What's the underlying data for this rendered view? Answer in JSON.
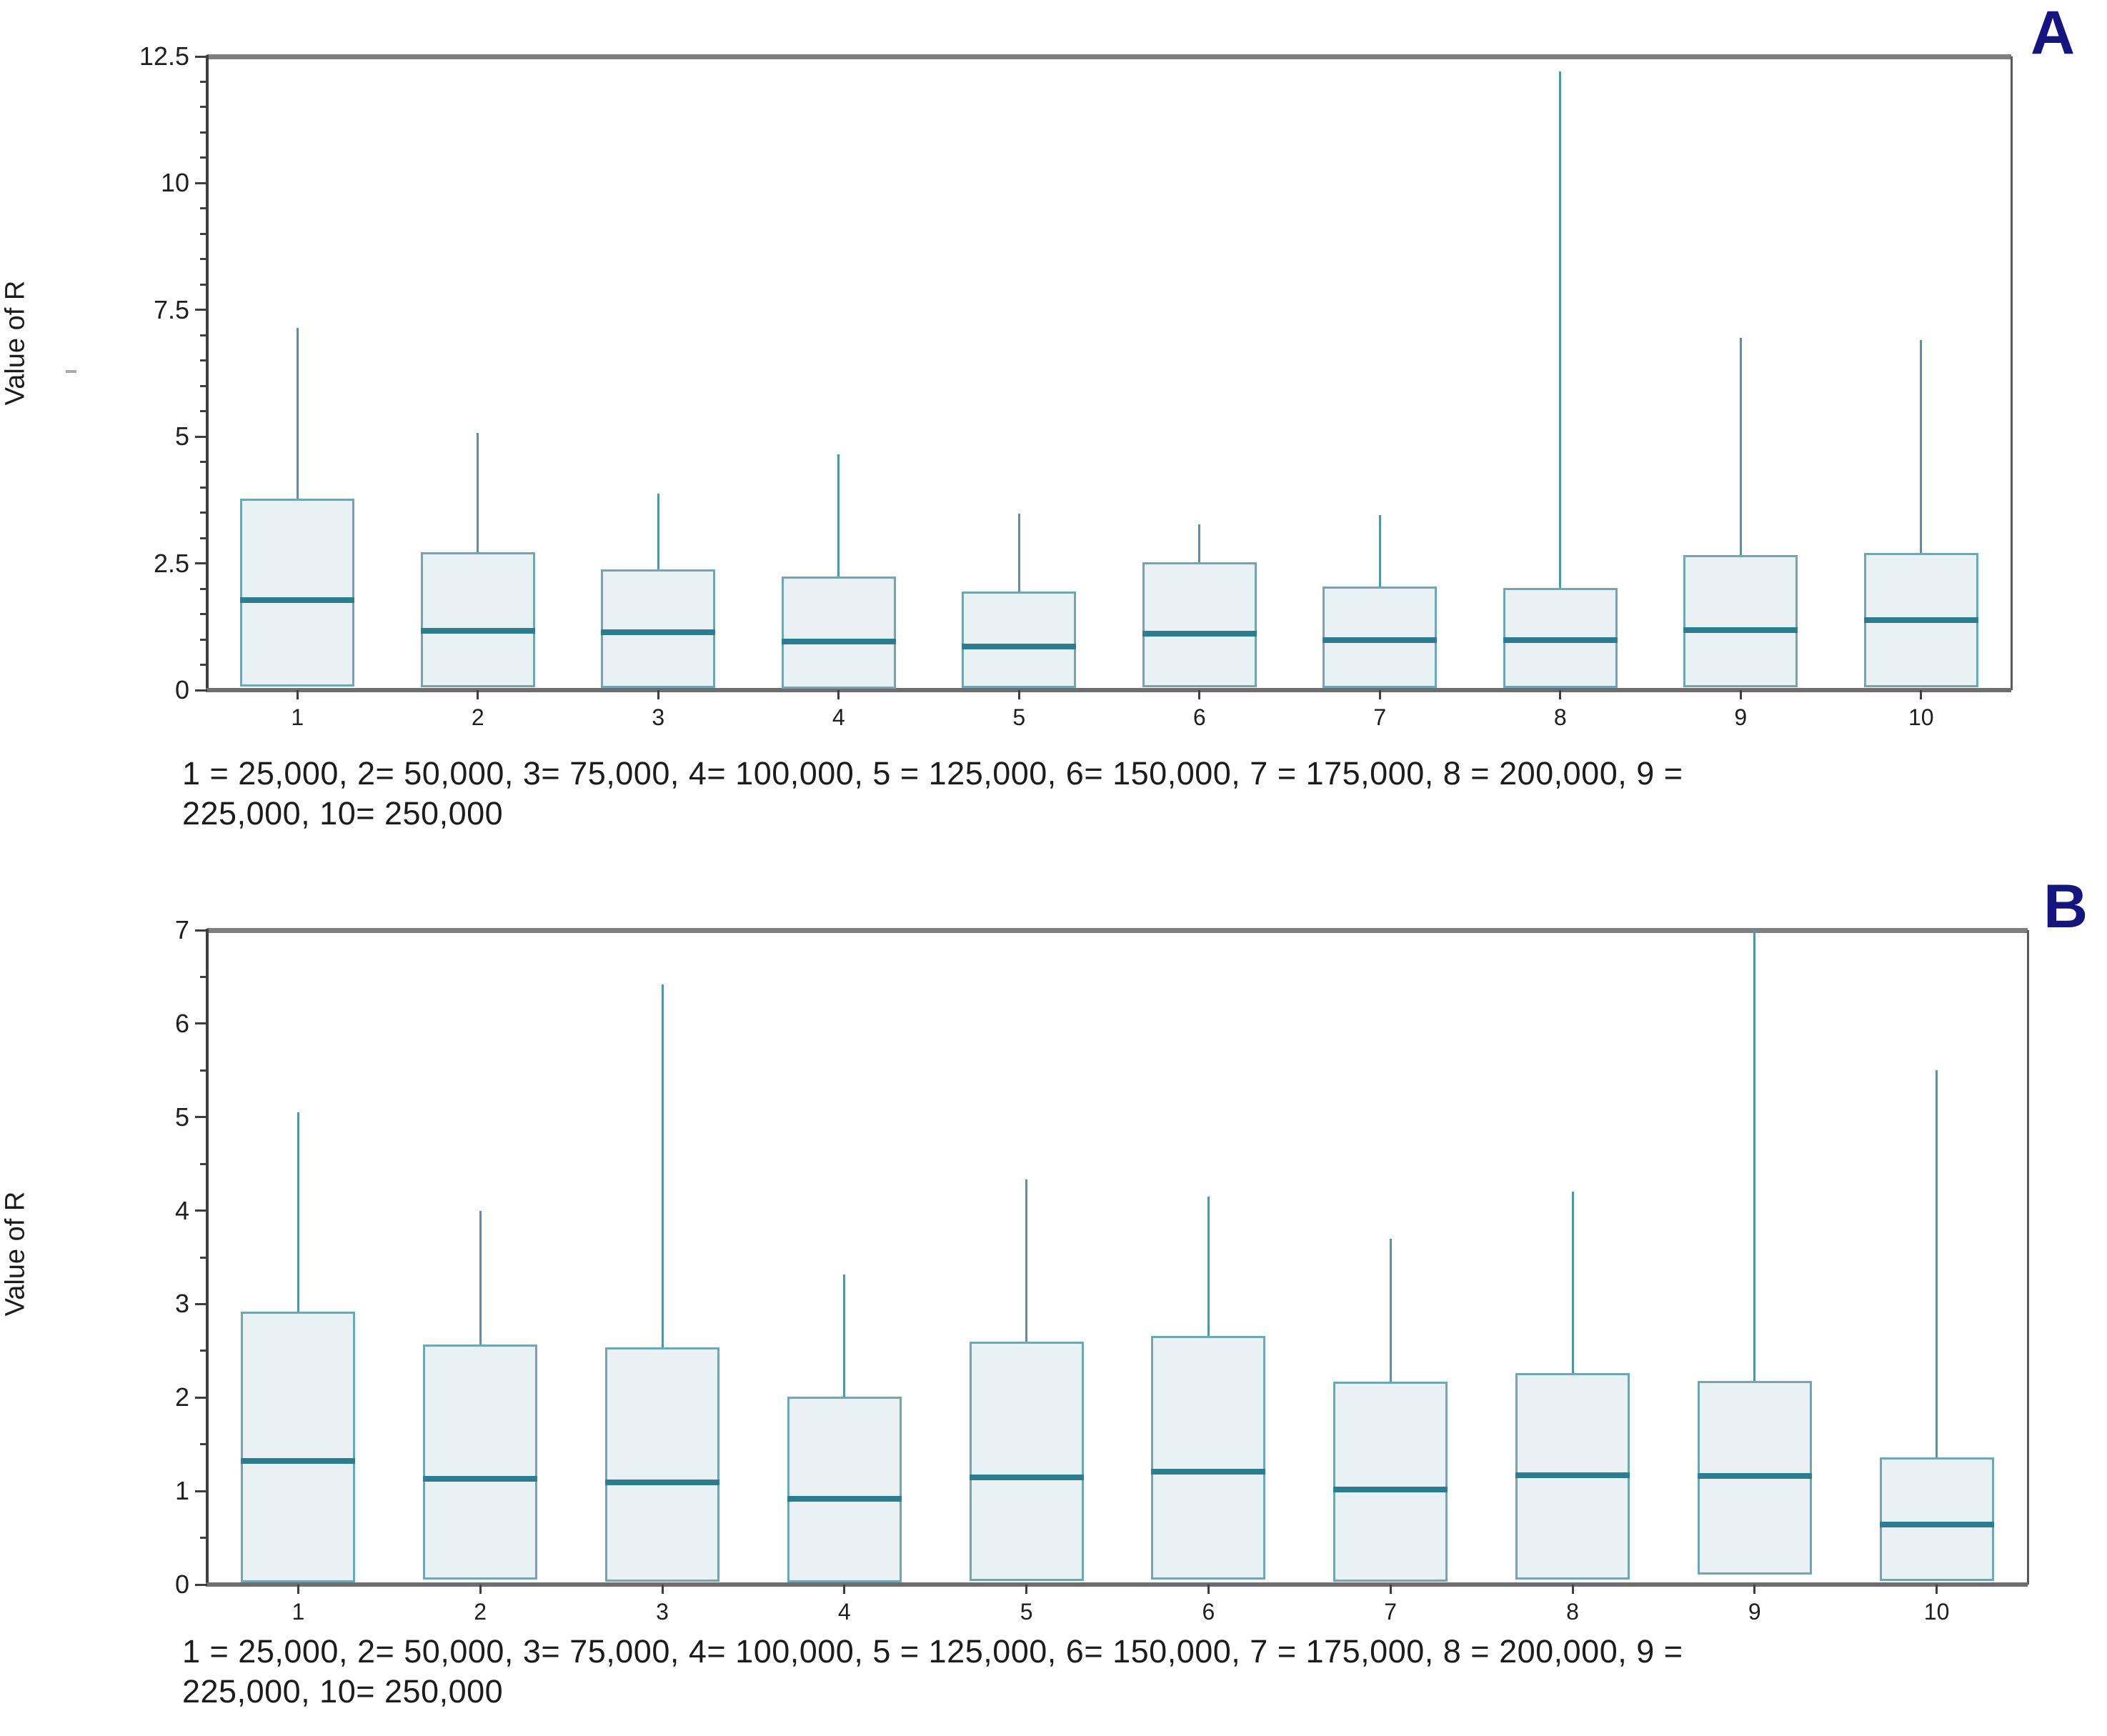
{
  "page": {
    "background": "#ffffff"
  },
  "colors": {
    "box_fill": "#e9f1f5",
    "box_border": "#6fa7b4",
    "median": "#2b7d92",
    "whisker": "#4f97a8",
    "axis": "#3f3f3f",
    "frame_gray": "#7f7f7f",
    "bottom_axis": "#6e6e6e",
    "panel_letter": "#151580",
    "text": "#1c1c1c"
  },
  "chart_data": [
    {
      "type": "boxplot",
      "panel_label": "A",
      "ylabel": "Value of R",
      "xlabel": "",
      "ylim": [
        0,
        12.5
      ],
      "ytick_values": [
        0,
        2.5,
        5,
        7.5,
        10,
        12.5
      ],
      "ytick_labels": [
        "0",
        "2.5",
        "5",
        "7.5",
        "10",
        "12.5"
      ],
      "minor_tick_step": 0.5,
      "grid": false,
      "legend": "none",
      "categories": [
        "1",
        "2",
        "3",
        "4",
        "5",
        "6",
        "7",
        "8",
        "9",
        "10"
      ],
      "caption": [
        "1 = 25,000, 2= 50,000, 3= 75,000, 4= 100,000, 5 = 125,000, 6= 150,000, 7 = 175,000, 8 = 200,000, 9 =",
        "225,000, 10= 250,000"
      ],
      "boxes": [
        {
          "category": "1",
          "q1": 0.07,
          "median": 1.78,
          "q3": 3.78,
          "whisker_high": 7.15
        },
        {
          "category": "2",
          "q1": 0.05,
          "median": 1.17,
          "q3": 2.72,
          "whisker_high": 5.08
        },
        {
          "category": "3",
          "q1": 0.04,
          "median": 1.14,
          "q3": 2.38,
          "whisker_high": 3.87
        },
        {
          "category": "4",
          "q1": 0.03,
          "median": 0.96,
          "q3": 2.24,
          "whisker_high": 4.65
        },
        {
          "category": "5",
          "q1": 0.04,
          "median": 0.86,
          "q3": 1.94,
          "whisker_high": 3.48
        },
        {
          "category": "6",
          "q1": 0.05,
          "median": 1.11,
          "q3": 2.52,
          "whisker_high": 3.27
        },
        {
          "category": "7",
          "q1": 0.04,
          "median": 0.99,
          "q3": 2.04,
          "whisker_high": 3.45
        },
        {
          "category": "8",
          "q1": 0.04,
          "median": 0.99,
          "q3": 2.01,
          "whisker_high": 12.2
        },
        {
          "category": "9",
          "q1": 0.05,
          "median": 1.18,
          "q3": 2.67,
          "whisker_high": 6.95
        },
        {
          "category": "10",
          "q1": 0.05,
          "median": 1.38,
          "q3": 2.7,
          "whisker_high": 6.9
        }
      ]
    },
    {
      "type": "boxplot",
      "panel_label": "B",
      "ylabel": "Value of R",
      "xlabel": "",
      "ylim": [
        0,
        7
      ],
      "ytick_values": [
        0,
        1,
        2,
        3,
        4,
        5,
        6,
        7
      ],
      "ytick_labels": [
        "0",
        "1",
        "2",
        "3",
        "4",
        "5",
        "6",
        "7"
      ],
      "minor_tick_step": 0.5,
      "grid": false,
      "legend": "none",
      "categories": [
        "1",
        "2",
        "3",
        "4",
        "5",
        "6",
        "7",
        "8",
        "9",
        "10"
      ],
      "caption": [
        "1 = 25,000, 2= 50,000, 3= 75,000, 4= 100,000, 5 = 125,000, 6= 150,000, 7 = 175,000, 8 = 200,000, 9 =",
        "225,000, 10= 250,000"
      ],
      "boxes": [
        {
          "category": "1",
          "q1": 0.02,
          "median": 1.32,
          "q3": 2.92,
          "whisker_high": 5.05
        },
        {
          "category": "2",
          "q1": 0.05,
          "median": 1.13,
          "q3": 2.57,
          "whisker_high": 4.0
        },
        {
          "category": "3",
          "q1": 0.03,
          "median": 1.09,
          "q3": 2.54,
          "whisker_high": 6.42
        },
        {
          "category": "4",
          "q1": 0.02,
          "median": 0.92,
          "q3": 2.01,
          "whisker_high": 3.32
        },
        {
          "category": "5",
          "q1": 0.04,
          "median": 1.15,
          "q3": 2.6,
          "whisker_high": 4.33
        },
        {
          "category": "6",
          "q1": 0.05,
          "median": 1.21,
          "q3": 2.66,
          "whisker_high": 4.15
        },
        {
          "category": "7",
          "q1": 0.03,
          "median": 1.02,
          "q3": 2.17,
          "whisker_high": 3.7
        },
        {
          "category": "8",
          "q1": 0.05,
          "median": 1.17,
          "q3": 2.26,
          "whisker_high": 4.2
        },
        {
          "category": "9",
          "q1": 0.11,
          "median": 1.16,
          "q3": 2.18,
          "whisker_high": 7.0
        },
        {
          "category": "10",
          "q1": 0.04,
          "median": 0.64,
          "q3": 1.36,
          "whisker_high": 5.5
        }
      ]
    }
  ]
}
